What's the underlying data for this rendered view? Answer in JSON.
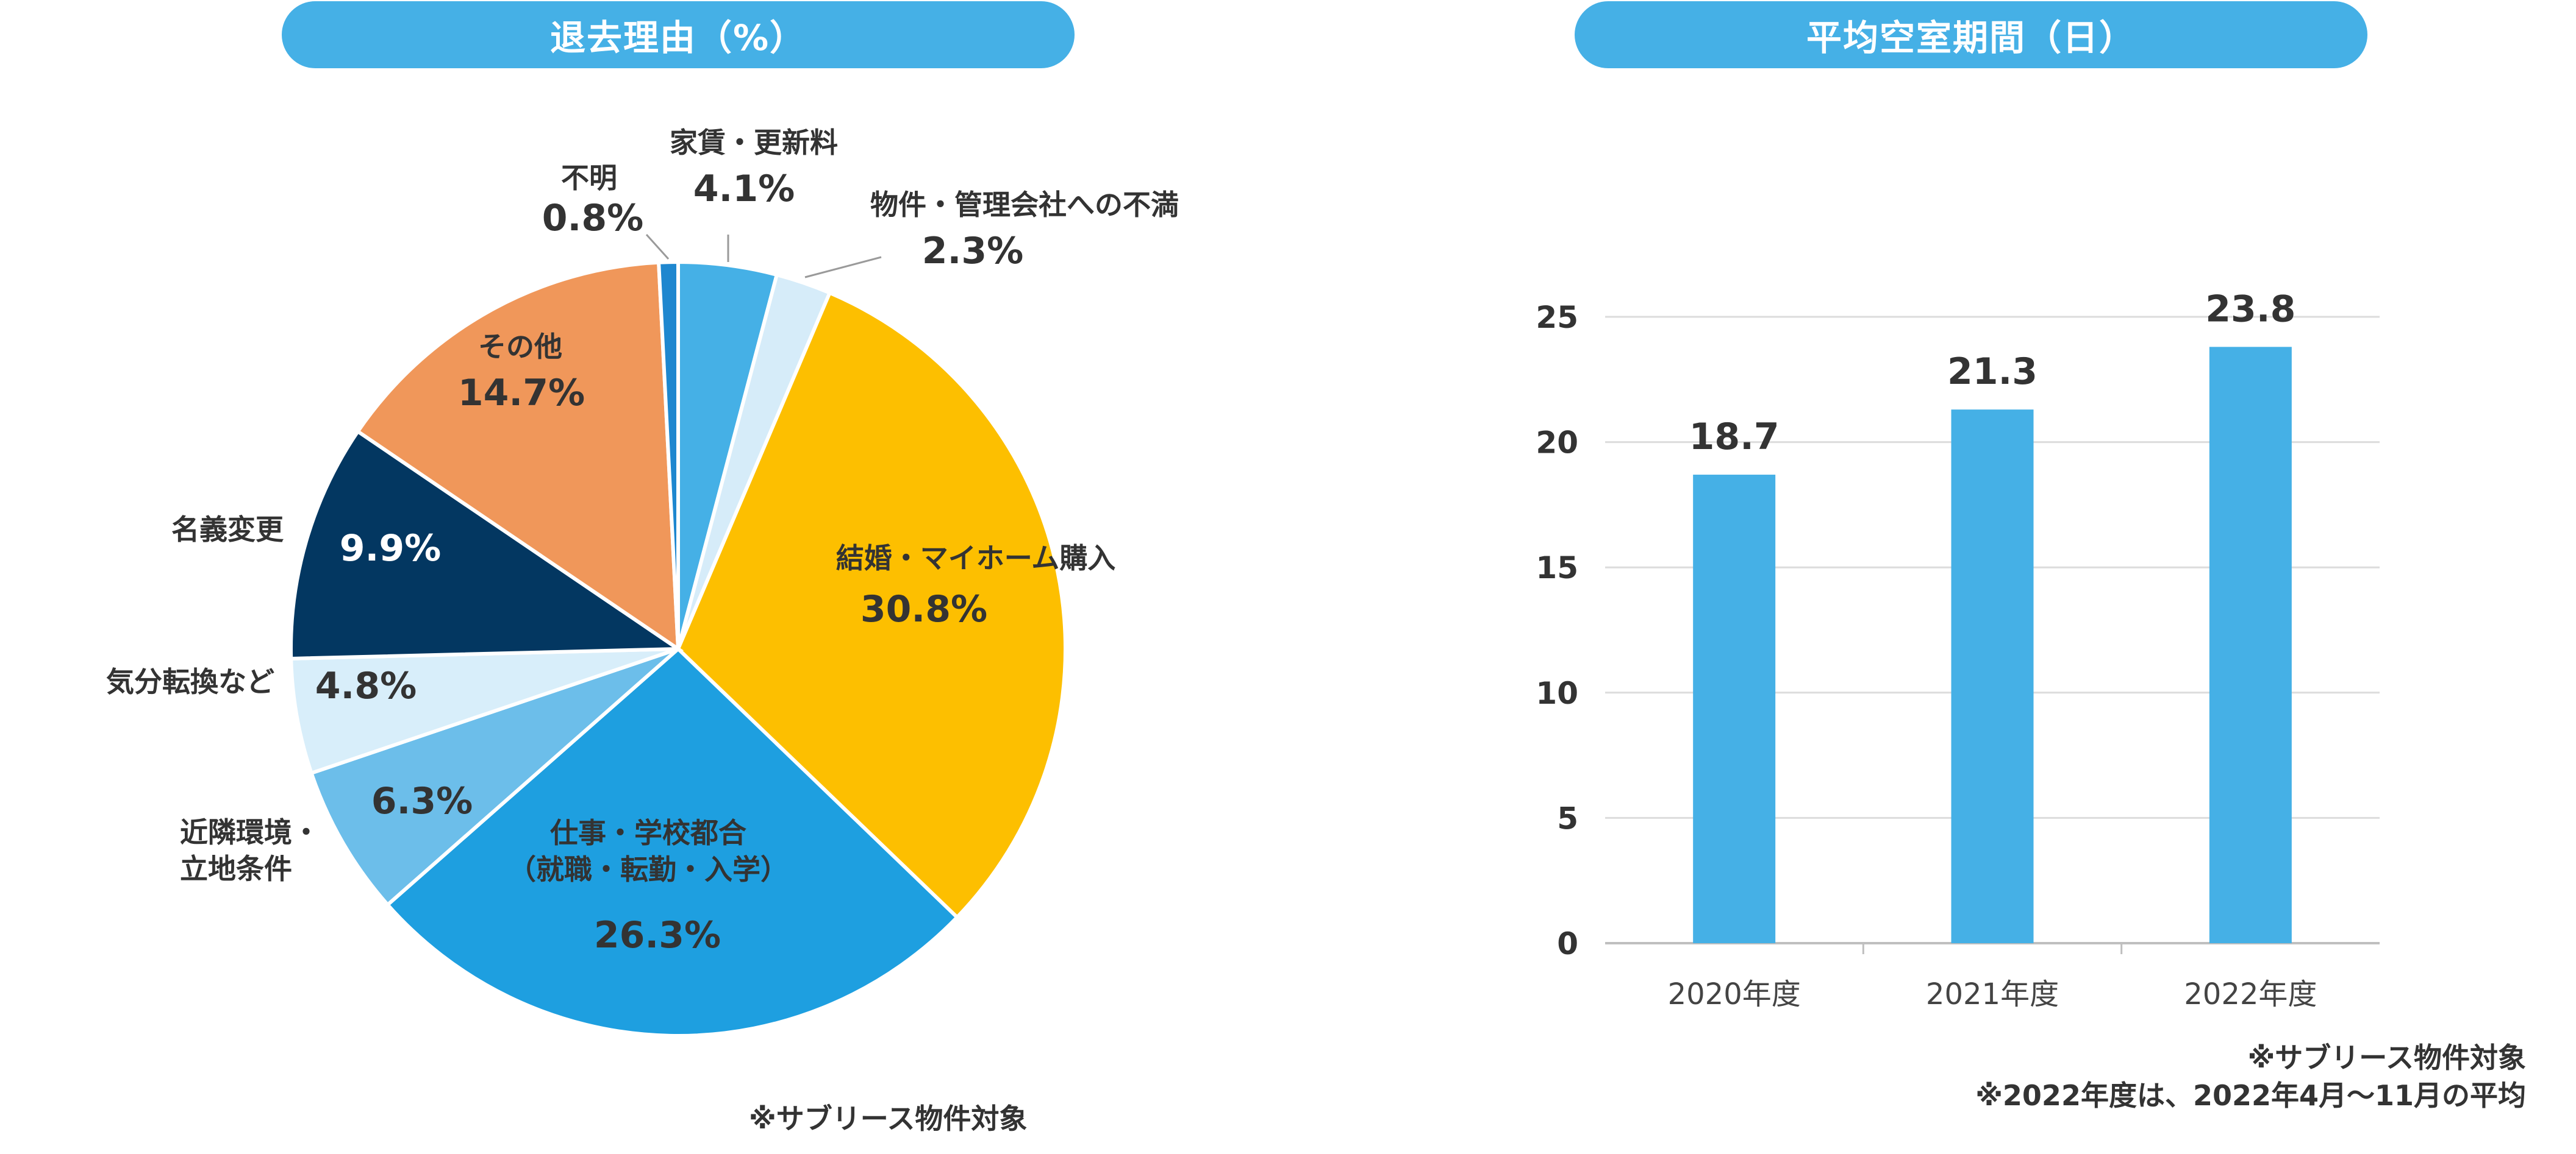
{
  "pie_chart": {
    "title": "退去理由（%）",
    "note": "※サブリース物件対象"
  },
  "bar_chart": {
    "title": "平均空室期間（日）",
    "notes": [
      "※サブリース物件対象",
      "※2022年度は、2022年4月～11月の平均"
    ]
  },
  "chart_data": [
    {
      "type": "pie",
      "title": "退去理由（%）",
      "slices": [
        {
          "label": "家賃・更新料",
          "value": 4.1,
          "value_label": "4.1%",
          "color": "#45b0e6"
        },
        {
          "label": "物件・管理会社への不満",
          "value": 2.3,
          "value_label": "2.3%",
          "color": "#d6ecf9"
        },
        {
          "label": "結婚・マイホーム購入",
          "value": 30.8,
          "value_label": "30.8%",
          "color": "#fdbf00"
        },
        {
          "label": "仕事・学校都合\n（就職・転勤・入学）",
          "value": 26.3,
          "value_label": "26.3%",
          "color": "#1e9fe0"
        },
        {
          "label": "近隣環境・\n立地条件",
          "value": 6.3,
          "value_label": "6.3%",
          "color": "#6cbeea"
        },
        {
          "label": "気分転換など",
          "value": 4.8,
          "value_label": "4.8%",
          "color": "#d8eefa"
        },
        {
          "label": "名義変更",
          "value": 9.9,
          "value_label": "9.9%",
          "color": "#033761"
        },
        {
          "label": "その他",
          "value": 14.7,
          "value_label": "14.7%",
          "color": "#f0975a"
        },
        {
          "label": "不明",
          "value": 0.8,
          "value_label": "0.8%",
          "color": "#1e87cf"
        }
      ]
    },
    {
      "type": "bar",
      "title": "平均空室期間（日）",
      "categories": [
        "2020年度",
        "2021年度",
        "2022年度"
      ],
      "values": [
        18.7,
        21.3,
        23.8
      ],
      "value_labels": [
        "18.7",
        "21.3",
        "23.8"
      ],
      "ylim": [
        0,
        25
      ],
      "yticks": [
        0,
        5,
        10,
        15,
        20,
        25
      ],
      "grid": true,
      "bar_color": "#45b0e6"
    }
  ]
}
